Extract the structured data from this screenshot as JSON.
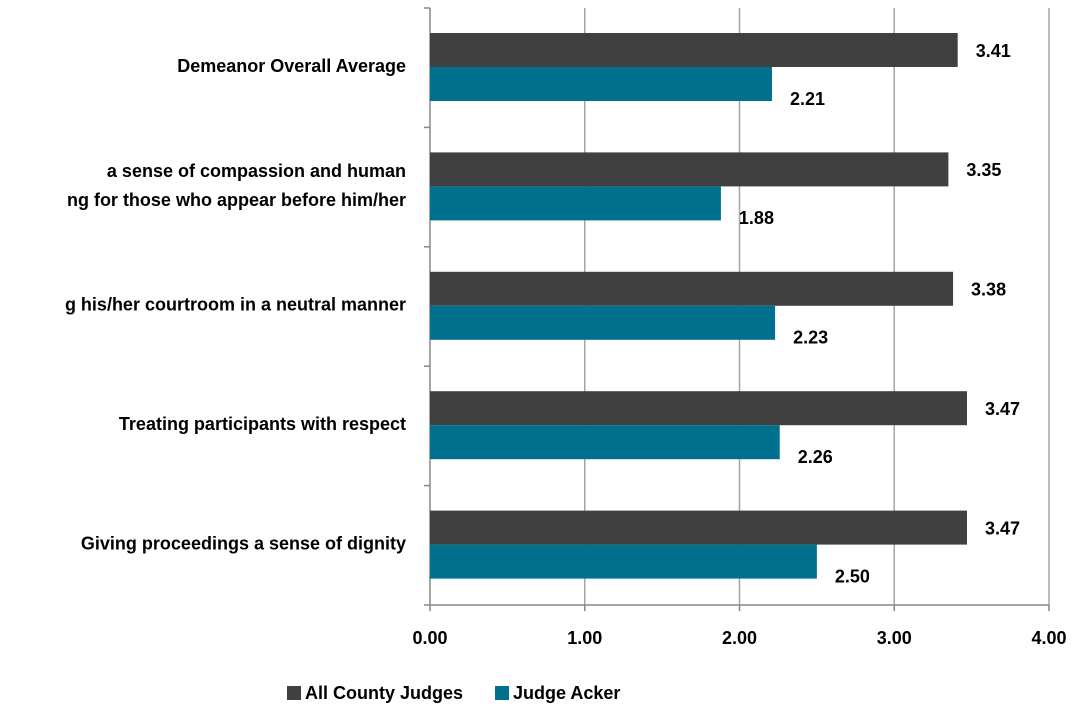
{
  "chart_data": {
    "type": "hbar",
    "categories": [
      "Demeanor Overall Average",
      "a sense of compassion and human\nng for those who appear before him/her",
      "g his/her courtroom in a neutral manner",
      "Treating participants with respect",
      "Giving proceedings a sense of dignity"
    ],
    "series": [
      {
        "name": "All County Judges",
        "color": "#404040",
        "values": [
          3.41,
          3.35,
          3.38,
          3.47,
          3.47
        ],
        "value_labels": [
          "3.41",
          "3.35",
          "3.38",
          "3.47",
          "3.47"
        ]
      },
      {
        "name": "Judge Acker",
        "color": "#00708f",
        "values": [
          2.21,
          1.88,
          2.23,
          2.26,
          2.5
        ],
        "value_labels": [
          "2.21",
          "1.88",
          "2.23",
          "2.26",
          "2.50"
        ]
      }
    ],
    "xlim": [
      0,
      4
    ],
    "xticks": [
      {
        "value": 0,
        "label": "0.00"
      },
      {
        "value": 1,
        "label": "1.00"
      },
      {
        "value": 2,
        "label": "2.00"
      },
      {
        "value": 3,
        "label": "3.00"
      },
      {
        "value": 4,
        "label": "4.00"
      }
    ],
    "grid": true,
    "legend": "bottom"
  }
}
